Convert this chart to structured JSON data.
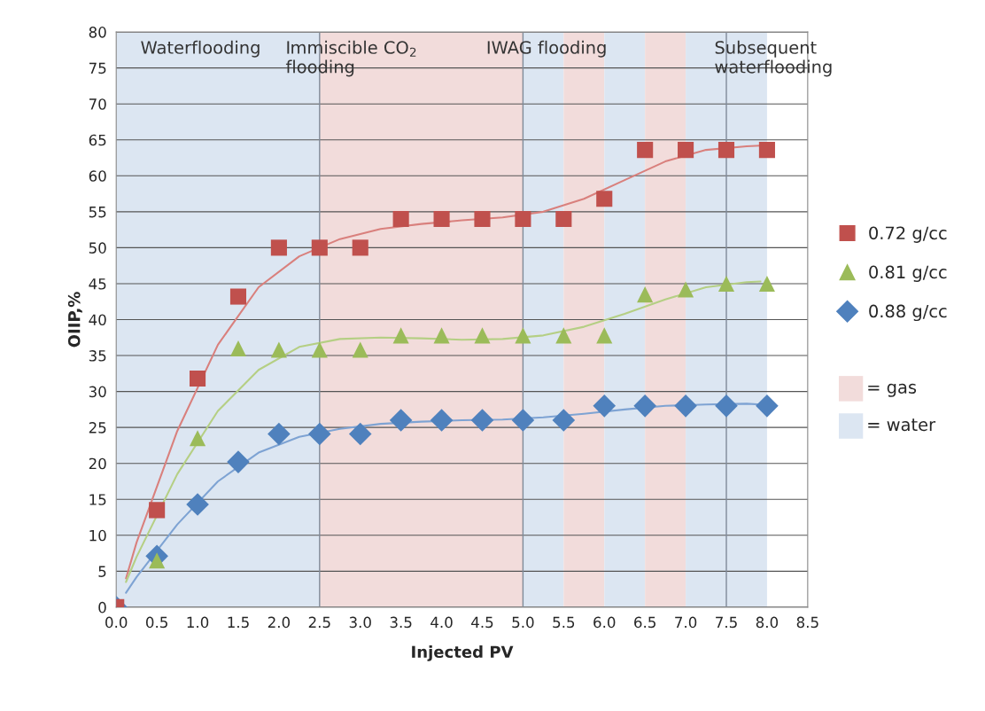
{
  "chart_data": {
    "type": "scatter",
    "xlabel": "Injected PV",
    "ylabel": "OIIP,%",
    "xlim": [
      0,
      8.5
    ],
    "ylim": [
      0,
      80
    ],
    "xticks": [
      {
        "value": 0,
        "label": "0.0"
      },
      {
        "value": 0.5,
        "label": "0.5"
      },
      {
        "value": 1,
        "label": "1.0"
      },
      {
        "value": 1.5,
        "label": "1.5"
      },
      {
        "value": 2,
        "label": "2.0"
      },
      {
        "value": 2.5,
        "label": "2.5"
      },
      {
        "value": 3,
        "label": "3.0"
      },
      {
        "value": 3.5,
        "label": "3.5"
      },
      {
        "value": 4,
        "label": "4.0"
      },
      {
        "value": 4.5,
        "label": "4.5"
      },
      {
        "value": 5,
        "label": "5.0"
      },
      {
        "value": 5.5,
        "label": "5.5"
      },
      {
        "value": 6,
        "label": "6.0"
      },
      {
        "value": 6.5,
        "label": "6.5"
      },
      {
        "value": 7,
        "label": "7.0"
      },
      {
        "value": 7.5,
        "label": "7.5"
      },
      {
        "value": 8,
        "label": "8.0"
      },
      {
        "value": 8.5,
        "label": "8.5"
      }
    ],
    "yticks": [
      0,
      5,
      10,
      15,
      20,
      25,
      30,
      35,
      40,
      45,
      50,
      55,
      60,
      65,
      70,
      75,
      80
    ],
    "grid": "y",
    "legend": "right",
    "x": [
      0,
      0.5,
      1,
      1.5,
      2,
      2.5,
      3,
      3.5,
      4,
      4.5,
      5,
      5.5,
      6,
      6.5,
      7,
      7.5,
      8
    ],
    "series": [
      {
        "name": "0.72 g/cc",
        "color": "#c0504d",
        "marker": "square",
        "values": [
          0,
          13.5,
          31.8,
          43.2,
          50,
          50,
          50,
          54,
          54,
          54,
          54,
          54,
          56.8,
          63.6,
          63.6,
          63.6,
          63.6
        ]
      },
      {
        "name": "0.81 g/cc",
        "color": "#9bbb59",
        "marker": "triangle",
        "values": [
          null,
          6.5,
          23.5,
          36,
          35.8,
          35.8,
          35.8,
          37.8,
          37.8,
          37.8,
          37.8,
          37.8,
          37.8,
          43.5,
          44.2,
          45,
          45
        ]
      },
      {
        "name": "0.88 g/cc",
        "color": "#4f81bd",
        "marker": "diamond",
        "values": [
          0,
          7.1,
          14.3,
          20.2,
          24.1,
          24.1,
          24.1,
          26,
          26,
          26,
          26,
          26,
          28,
          28,
          28,
          28,
          28
        ]
      },
      {
        "type": "line",
        "color": "#d9807d",
        "marker": "none",
        "x": [
          0.12,
          0.25,
          0.75,
          1.25,
          1.75,
          2.25,
          2.75,
          3.25,
          3.75,
          4.25,
          4.75,
          5.25,
          5.75,
          6.25,
          6.75,
          7.25,
          7.75,
          7.92
        ],
        "values": [
          4,
          9,
          24.5,
          36.5,
          44.5,
          48.8,
          51.2,
          52.6,
          53.3,
          53.8,
          54.2,
          55,
          56.8,
          59.4,
          62,
          63.6,
          64.1,
          64.2
        ]
      },
      {
        "type": "line",
        "color": "#b5cf84",
        "marker": "none",
        "x": [
          0.12,
          0.25,
          0.75,
          1.25,
          1.75,
          2.25,
          2.75,
          3.25,
          3.75,
          4.25,
          4.75,
          5.25,
          5.75,
          6.25,
          6.75,
          7.25,
          7.75,
          7.92
        ],
        "values": [
          3.5,
          7,
          18.5,
          27.3,
          33,
          36.2,
          37.3,
          37.5,
          37.4,
          37.2,
          37.3,
          37.8,
          39,
          40.8,
          42.8,
          44.5,
          45.2,
          45.3
        ]
      },
      {
        "type": "line",
        "color": "#7ea3d3",
        "marker": "none",
        "x": [
          0.12,
          0.25,
          0.75,
          1.25,
          1.75,
          2.25,
          2.75,
          3.25,
          3.75,
          4.25,
          4.75,
          5.25,
          5.75,
          6.25,
          6.75,
          7.25,
          7.75,
          7.92
        ],
        "values": [
          2,
          4.2,
          11.5,
          17.5,
          21.5,
          23.7,
          24.8,
          25.5,
          25.8,
          26,
          26.1,
          26.4,
          26.9,
          27.5,
          28,
          28.2,
          28.3,
          28.2
        ]
      }
    ],
    "bands": [
      {
        "axis": "x",
        "from": 2.5,
        "to": 5,
        "label": null,
        "color": "#f2dcdb"
      },
      {
        "axis": "x",
        "from": 0,
        "to": 2.5,
        "label": null,
        "color": "#dce6f2"
      },
      {
        "axis": "x",
        "from": 5,
        "to": 5.5,
        "label": null,
        "color": "#dce6f2"
      },
      {
        "axis": "x",
        "from": 5.5,
        "to": 6,
        "label": null,
        "color": "#f2dcdb"
      },
      {
        "axis": "x",
        "from": 6,
        "to": 6.5,
        "label": null,
        "color": "#dce6f2"
      },
      {
        "axis": "x",
        "from": 6.5,
        "to": 7,
        "label": null,
        "color": "#f2dcdb"
      },
      {
        "axis": "x",
        "from": 7,
        "to": 8,
        "label": null,
        "color": "#dce6f2"
      }
    ],
    "ref_lines": [
      {
        "axis": "x",
        "value": 2.5,
        "color": "#7f8a99"
      },
      {
        "axis": "x",
        "value": 5,
        "color": "#7f8a99"
      },
      {
        "axis": "x",
        "value": 7.5,
        "color": "#7f8a99"
      }
    ],
    "annotations": [
      "Waterflooding",
      "Immiscible CO$_{2}$\nflooding",
      "IWAG flooding",
      "Subsequent\nwaterflooding",
      "= gas",
      "= water"
    ]
  }
}
